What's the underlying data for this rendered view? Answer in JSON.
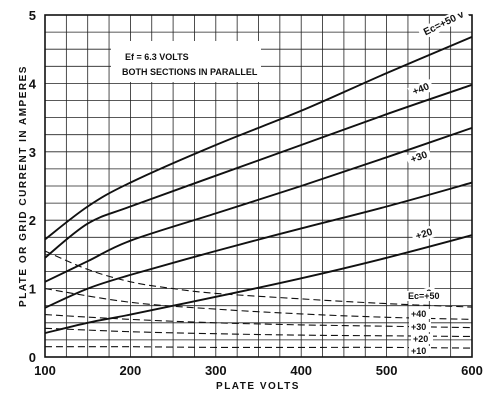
{
  "chart_data": {
    "type": "line",
    "xlabel": "PLATE VOLTS",
    "ylabel": "PLATE OR GRID CURRENT IN AMPERES",
    "xlim": [
      100,
      600
    ],
    "ylim": [
      0,
      5
    ],
    "x_ticks": [
      "100",
      "200",
      "300",
      "400",
      "500",
      "600"
    ],
    "y_ticks": [
      "0",
      "1",
      "2",
      "3",
      "4",
      "5"
    ],
    "grid": true,
    "annotation": {
      "line1": "Ef = 6.3 VOLTS",
      "line2": "BOTH SECTIONS IN PARALLEL"
    },
    "plate_current_series": [
      {
        "label": "Ec=+50 v",
        "x": [
          100,
          150,
          200,
          300,
          400,
          500,
          600
        ],
        "y": [
          1.72,
          2.2,
          2.55,
          3.1,
          3.6,
          4.15,
          4.68
        ]
      },
      {
        "label": "+40",
        "x": [
          100,
          150,
          200,
          300,
          400,
          500,
          600
        ],
        "y": [
          1.45,
          1.95,
          2.2,
          2.65,
          3.1,
          3.55,
          3.98
        ]
      },
      {
        "label": "+30",
        "x": [
          100,
          150,
          200,
          300,
          400,
          500,
          600
        ],
        "y": [
          1.1,
          1.4,
          1.7,
          2.1,
          2.5,
          2.92,
          3.35
        ]
      },
      {
        "label": "+20",
        "x": [
          100,
          150,
          200,
          300,
          400,
          500,
          600
        ],
        "y": [
          0.72,
          1.0,
          1.2,
          1.55,
          1.88,
          2.2,
          2.55
        ]
      },
      {
        "label": "+10",
        "x": [
          100,
          150,
          200,
          300,
          400,
          500,
          600
        ],
        "y": [
          0.35,
          0.5,
          0.62,
          0.88,
          1.15,
          1.45,
          1.78
        ]
      }
    ],
    "grid_current_series": [
      {
        "label": "Ec=+50",
        "x": [
          100,
          150,
          200,
          250,
          300,
          400,
          500,
          600
        ],
        "y": [
          1.55,
          1.28,
          1.1,
          1.0,
          0.93,
          0.85,
          0.78,
          0.73
        ]
      },
      {
        "label": "+40",
        "x": [
          100,
          200,
          300,
          400,
          500,
          600
        ],
        "y": [
          1.0,
          0.8,
          0.7,
          0.63,
          0.58,
          0.55
        ]
      },
      {
        "label": "+30",
        "x": [
          100,
          200,
          300,
          400,
          500,
          600
        ],
        "y": [
          0.62,
          0.55,
          0.5,
          0.47,
          0.45,
          0.43
        ]
      },
      {
        "label": "+20",
        "x": [
          100,
          200,
          300,
          400,
          500,
          600
        ],
        "y": [
          0.42,
          0.37,
          0.34,
          0.32,
          0.31,
          0.3
        ]
      },
      {
        "label": "+10",
        "x": [
          100,
          200,
          300,
          400,
          500,
          600
        ],
        "y": [
          0.15,
          0.15,
          0.14,
          0.14,
          0.14,
          0.13
        ]
      }
    ]
  }
}
